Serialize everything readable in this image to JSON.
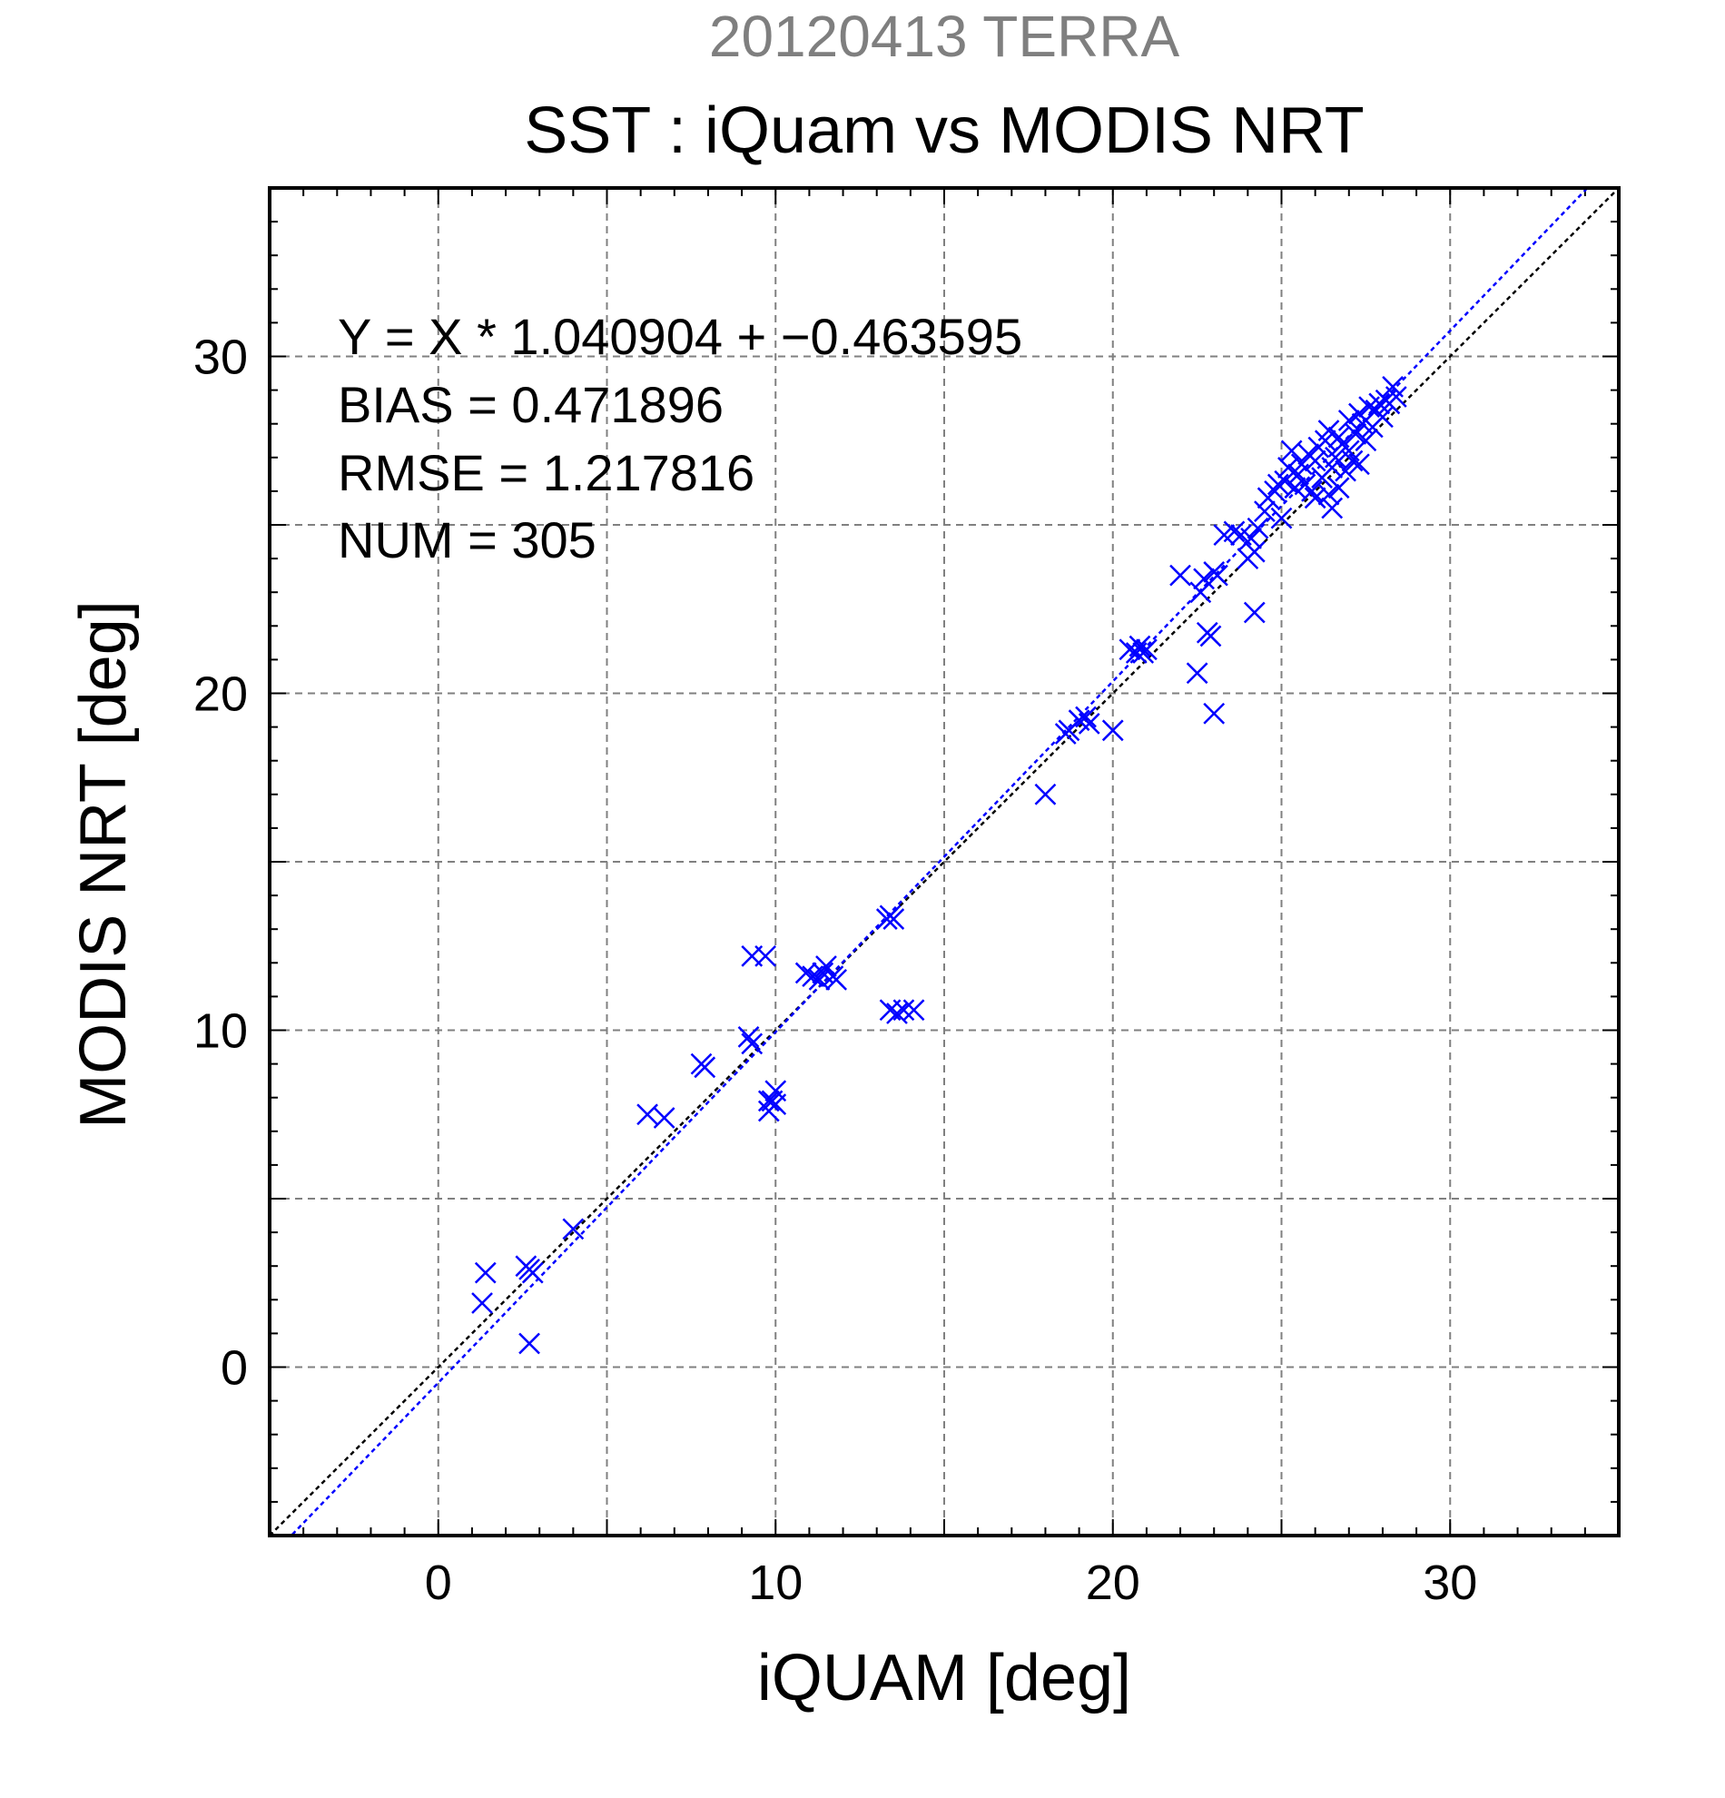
{
  "chart_data": {
    "type": "scatter",
    "suptitle": "20120413 TERRA",
    "title": "SST : iQuam vs MODIS NRT",
    "xlabel": "iQUAM [deg]",
    "ylabel": "MODIS NRT [deg]",
    "xlim": [
      -5,
      35
    ],
    "ylim": [
      -5,
      35
    ],
    "xticks": [
      0,
      10,
      20,
      30
    ],
    "yticks": [
      0,
      10,
      20,
      30
    ],
    "grid": true,
    "annotations": [
      "Y = X * 1.040904 + −0.463595",
      "BIAS = 0.471896",
      "RMSE = 1.217816",
      "NUM = 305"
    ],
    "lines": [
      {
        "label": "1:1",
        "slope": 1,
        "intercept": 0,
        "color": "#000000"
      },
      {
        "label": "fit",
        "slope": 1.040904,
        "intercept": -0.463595,
        "color": "#0000ff"
      }
    ],
    "colors": {
      "points": "#0000ff",
      "suptitle": "#7f7f7f",
      "grid": "#808080"
    },
    "series": [
      {
        "marker": "x-mark-icon",
        "points": [
          [
            1.3,
            1.9
          ],
          [
            1.4,
            2.8
          ],
          [
            2.6,
            3.0
          ],
          [
            2.7,
            2.9
          ],
          [
            2.8,
            2.8
          ],
          [
            2.7,
            0.7
          ],
          [
            4.0,
            4.1
          ],
          [
            6.2,
            7.5
          ],
          [
            6.7,
            7.4
          ],
          [
            7.8,
            9.0
          ],
          [
            7.9,
            8.9
          ],
          [
            9.2,
            9.8
          ],
          [
            9.3,
            9.6
          ],
          [
            9.3,
            12.2
          ],
          [
            9.7,
            12.2
          ],
          [
            9.8,
            7.6
          ],
          [
            9.8,
            7.9
          ],
          [
            10.0,
            8.2
          ],
          [
            9.9,
            7.9
          ],
          [
            10.0,
            7.8
          ],
          [
            10.9,
            11.7
          ],
          [
            11.1,
            11.6
          ],
          [
            11.3,
            11.5
          ],
          [
            11.4,
            11.7
          ],
          [
            11.5,
            11.9
          ],
          [
            11.7,
            11.6
          ],
          [
            11.8,
            11.5
          ],
          [
            13.3,
            13.3
          ],
          [
            13.4,
            13.4
          ],
          [
            13.5,
            13.3
          ],
          [
            13.4,
            10.6
          ],
          [
            13.6,
            10.5
          ],
          [
            13.8,
            10.6
          ],
          [
            14.1,
            10.6
          ],
          [
            18.0,
            17.0
          ],
          [
            18.6,
            18.8
          ],
          [
            18.7,
            18.9
          ],
          [
            19.0,
            19.2
          ],
          [
            19.2,
            19.3
          ],
          [
            19.3,
            19.1
          ],
          [
            20.0,
            18.9
          ],
          [
            20.5,
            21.3
          ],
          [
            20.7,
            21.2
          ],
          [
            20.8,
            21.4
          ],
          [
            20.9,
            21.2
          ],
          [
            21.0,
            21.3
          ],
          [
            22.0,
            23.5
          ],
          [
            22.5,
            20.6
          ],
          [
            22.6,
            23.0
          ],
          [
            22.7,
            23.4
          ],
          [
            22.8,
            21.8
          ],
          [
            22.9,
            21.7
          ],
          [
            23.0,
            19.4
          ],
          [
            23.0,
            23.6
          ],
          [
            23.1,
            23.5
          ],
          [
            23.3,
            24.7
          ],
          [
            23.6,
            24.8
          ],
          [
            23.8,
            24.7
          ],
          [
            24.0,
            24.0
          ],
          [
            24.1,
            24.6
          ],
          [
            24.2,
            22.4
          ],
          [
            24.2,
            24.2
          ],
          [
            24.3,
            24.9
          ],
          [
            24.5,
            25.4
          ],
          [
            24.6,
            25.8
          ],
          [
            24.8,
            26.0
          ],
          [
            24.9,
            26.2
          ],
          [
            25.0,
            25.2
          ],
          [
            25.1,
            26.3
          ],
          [
            25.2,
            26.7
          ],
          [
            25.3,
            27.2
          ],
          [
            25.4,
            26.1
          ],
          [
            25.5,
            26.5
          ],
          [
            25.6,
            26.8
          ],
          [
            25.7,
            26.2
          ],
          [
            25.8,
            27.1
          ],
          [
            25.9,
            26.0
          ],
          [
            26.0,
            25.8
          ],
          [
            26.0,
            26.9
          ],
          [
            26.1,
            27.3
          ],
          [
            26.2,
            26.4
          ],
          [
            26.3,
            27.5
          ],
          [
            26.4,
            25.9
          ],
          [
            26.4,
            27.8
          ],
          [
            26.5,
            26.7
          ],
          [
            26.5,
            25.5
          ],
          [
            26.6,
            27.0
          ],
          [
            26.7,
            27.6
          ],
          [
            26.7,
            26.1
          ],
          [
            26.8,
            27.4
          ],
          [
            26.9,
            26.6
          ],
          [
            27.0,
            28.1
          ],
          [
            27.0,
            27.2
          ],
          [
            27.1,
            26.9
          ],
          [
            27.2,
            27.7
          ],
          [
            27.3,
            28.3
          ],
          [
            27.3,
            26.8
          ],
          [
            27.4,
            28.0
          ],
          [
            27.5,
            27.5
          ],
          [
            27.6,
            28.5
          ],
          [
            27.7,
            27.9
          ],
          [
            27.8,
            28.4
          ],
          [
            27.9,
            28.6
          ],
          [
            28.0,
            28.2
          ],
          [
            28.1,
            28.7
          ],
          [
            28.2,
            28.6
          ],
          [
            28.3,
            29.1
          ],
          [
            28.4,
            28.8
          ]
        ]
      }
    ]
  }
}
